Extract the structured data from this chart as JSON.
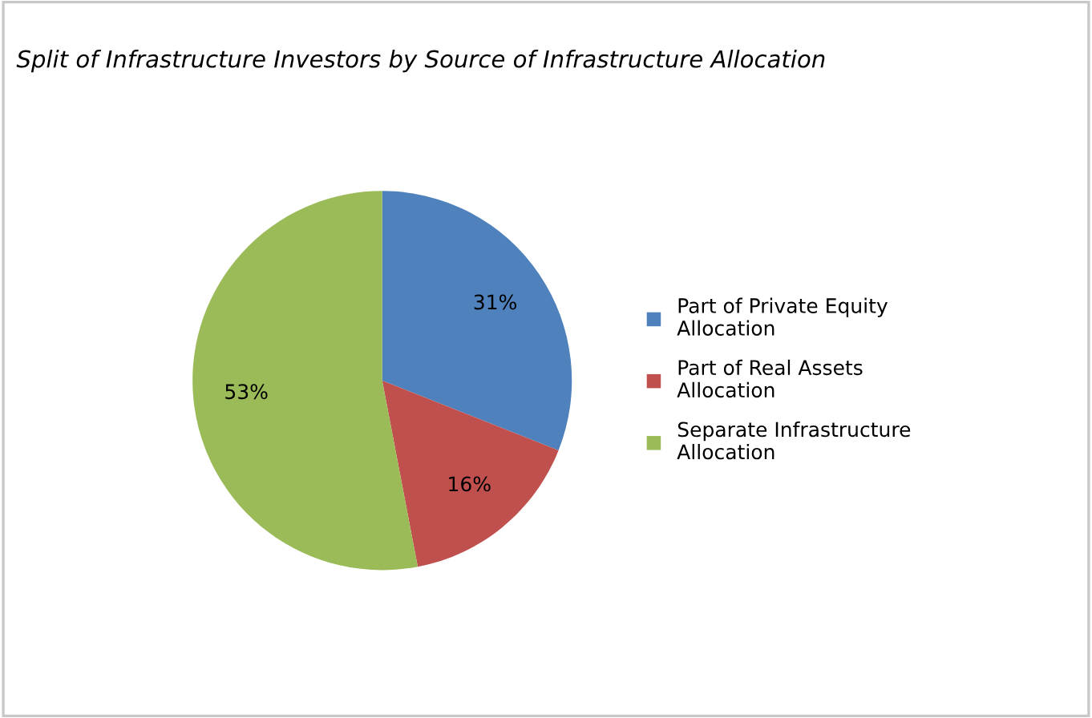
{
  "chart_data": {
    "type": "pie",
    "title": "Split of Infrastructure Investors by Source of Infrastructure Allocation",
    "categories": [
      "Part of Private Equity\nAllocation",
      "Part of Real Assets\nAllocation",
      "Separate Infrastructure\nAllocation"
    ],
    "values": [
      31,
      16,
      53
    ],
    "colors": [
      "#4f81bd",
      "#c0504d",
      "#9bbb59"
    ],
    "value_labels": [
      "31%",
      "16%",
      "53%"
    ],
    "legend": "right"
  }
}
